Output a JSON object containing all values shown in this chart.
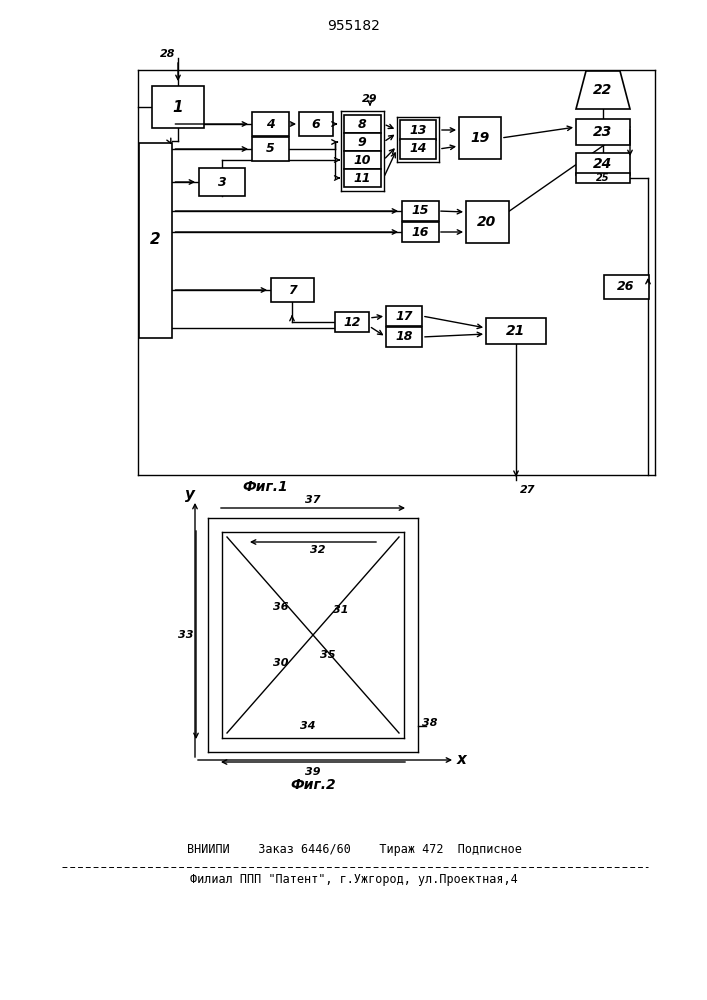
{
  "title": "955182",
  "fig1_caption": "Фиг.1",
  "fig2_caption": "Фиг.2",
  "footer_line1": "ВНИИПИ    Заказ 6446/60    Тираж 472  Подписное",
  "footer_line2": "Филиал ППП \"Патент\", г.Ужгород, ул.Проектная,4",
  "bg_color": "#ffffff",
  "line_color": "#000000"
}
